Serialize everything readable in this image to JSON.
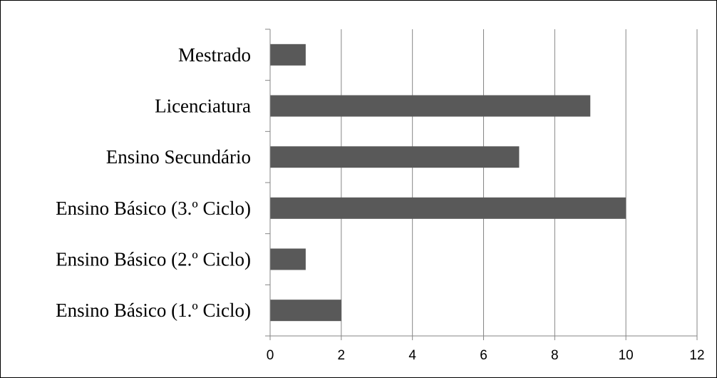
{
  "chart_data": {
    "type": "bar",
    "orientation": "horizontal",
    "title": "",
    "xlabel": "",
    "ylabel": "",
    "categories": [
      "Mestrado",
      "Licenciatura",
      "Ensino Secundário",
      "Ensino Básico (3.º Ciclo)",
      "Ensino Básico (2.º Ciclo)",
      "Ensino Básico (1.º Ciclo)"
    ],
    "values": [
      1,
      9,
      7,
      10,
      1,
      2
    ],
    "xlim": [
      0,
      12
    ],
    "x_ticks": [
      "0",
      "2",
      "4",
      "6",
      "8",
      "10",
      "12"
    ],
    "grid": "vertical",
    "legend": "none",
    "colors": {
      "bar": "#595959",
      "grid": "#868686",
      "axis": "#868686",
      "text": "#000000"
    }
  }
}
